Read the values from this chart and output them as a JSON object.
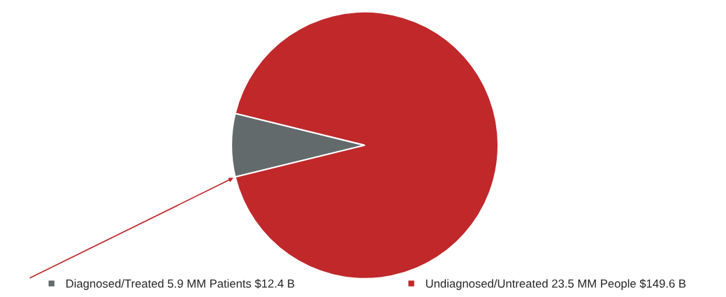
{
  "chart_data": {
    "type": "pie",
    "categories": [
      "Diagnosed/Treated 5.9 MM Patients $12.4 B",
      "Undiagnosed/Untreated 23.5 MM People $149.6 B"
    ],
    "values": [
      12.4,
      149.6
    ],
    "colors": [
      "#636a6b",
      "#c0282a"
    ],
    "legend": "bottom"
  }
}
